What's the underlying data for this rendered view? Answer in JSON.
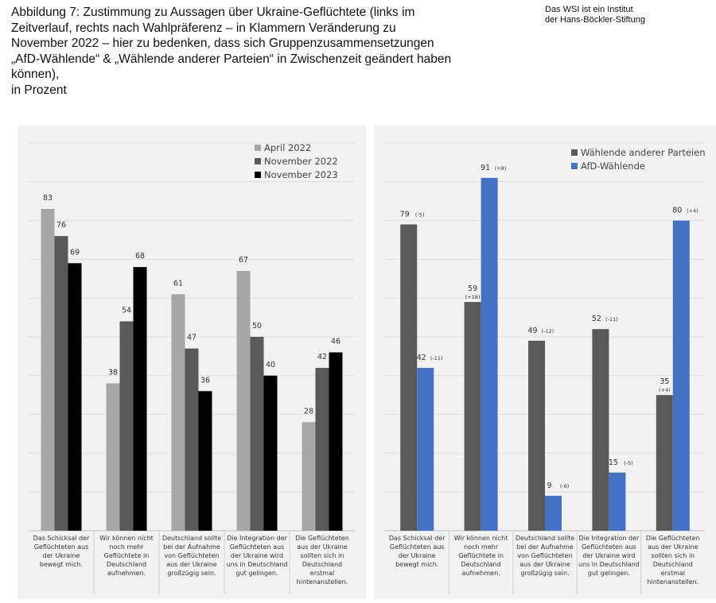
{
  "header": {
    "title_lines": [
      "Abbildung 7: Zustimmung zu Aussagen über Ukraine-Geflüchtete (links im",
      "Zeitverlauf, rechts nach Wahlpräferenz – in Klammern Veränderung zu",
      "November 2022 – hier zu bedenken, dass sich Gruppenzusammensetzungen",
      "„AfD-Wählende“ & „Wählende anderer Parteien“ in Zwischenzeit geändert haben",
      "können),",
      "in Prozent"
    ],
    "source_lines": [
      "Das WSI ist ein Institut",
      "der Hans-Böckler-Stiftung"
    ]
  },
  "chart_data": [
    {
      "type": "bar",
      "ylim": [
        0,
        100
      ],
      "grid": true,
      "legend_position": "top-right",
      "categories": [
        [
          "Das Schicksal der",
          "Geflüchteten aus",
          "der Ukraine",
          "bewegt mich."
        ],
        [
          "Wir können nicht",
          "noch mehr",
          "Geflüchtete in",
          "Deutschland",
          "aufnehmen."
        ],
        [
          "Deutschland sollte",
          "bei der Aufnahme",
          "von Geflüchteten",
          "aus der Ukraine",
          "großzügig sein."
        ],
        [
          "Die Integration der",
          "Geflüchteten aus",
          "der Ukraine wird",
          "uns in Deutschland",
          "gut gelingen."
        ],
        [
          "Die Geflüchteten",
          "aus der Ukraine",
          "sollten sich in",
          "Deutschland",
          "erstmal",
          "hintenanstellen."
        ]
      ],
      "series": [
        {
          "name": "April 2022",
          "color": "#a6a6a6",
          "values": [
            83,
            38,
            61,
            67,
            28
          ]
        },
        {
          "name": "November 2022",
          "color": "#595959",
          "values": [
            76,
            54,
            47,
            50,
            42
          ]
        },
        {
          "name": "November 2023",
          "color": "#000000",
          "values": [
            69,
            68,
            36,
            40,
            46
          ]
        }
      ]
    },
    {
      "type": "bar",
      "ylim": [
        0,
        100
      ],
      "grid": true,
      "legend_position": "top-right",
      "categories": [
        [
          "Das Schicksal der",
          "Geflüchteten aus",
          "der Ukraine",
          "bewegt mich."
        ],
        [
          "Wir können nicht",
          "noch mehr",
          "Geflüchtete in",
          "Deutschland",
          "aufnehmen."
        ],
        [
          "Deutschland sollte",
          "bei der Aufnahme",
          "von Geflüchteten",
          "aus der Ukraine",
          "großzügig sein."
        ],
        [
          "Die Integration der",
          "Geflüchteten aus",
          "der Ukraine wird",
          "uns in Deutschland",
          "gut gelingen."
        ],
        [
          "Die Geflüchteten",
          "aus der Ukraine",
          "sollten sich in",
          "Deutschland",
          "erstmal",
          "hintenanstellen."
        ]
      ],
      "series": [
        {
          "name": "Wählende anderer Parteien",
          "color": "#595959",
          "values": [
            79,
            59,
            49,
            52,
            35
          ],
          "changes": [
            "(-5)",
            "(+18)",
            "(-12)",
            "(-11)",
            "(+4)"
          ]
        },
        {
          "name": "AfD-Wählende",
          "color": "#4472c4",
          "values": [
            42,
            91,
            9,
            15,
            80
          ],
          "changes": [
            "(-11)",
            "(+8)",
            "(-6)",
            "(-5)",
            "(+4)"
          ]
        }
      ]
    }
  ]
}
